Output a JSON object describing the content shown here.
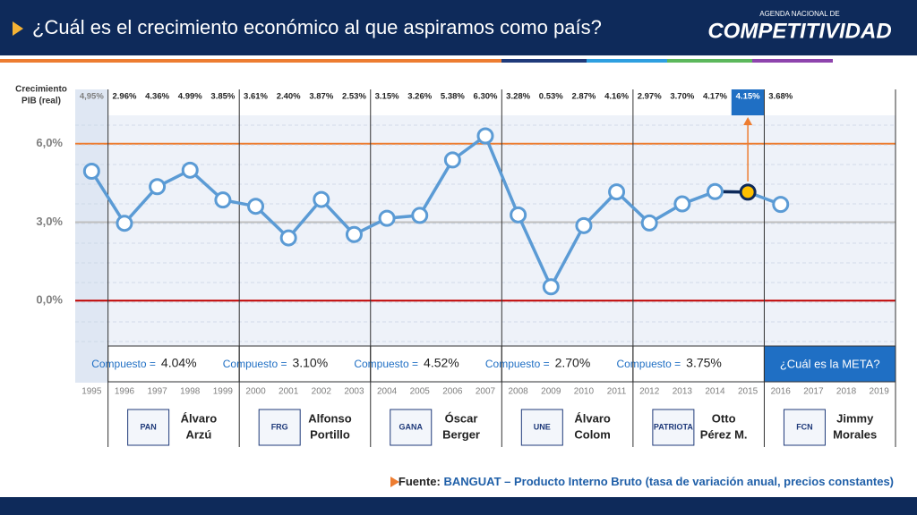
{
  "header": {
    "title": "¿Cuál es el crecimiento económico al que aspiramos como país?",
    "logo_top": "AGENDA NACIONAL DE",
    "logo": "COMPETITIVIDAD"
  },
  "chart_data": {
    "type": "line",
    "y_label": [
      "Crecimiento",
      "PIB (real)"
    ],
    "categories": [
      "1995",
      "1996",
      "1997",
      "1998",
      "1999",
      "2000",
      "2001",
      "2002",
      "2003",
      "2004",
      "2005",
      "2006",
      "2007",
      "2008",
      "2009",
      "2010",
      "2011",
      "2012",
      "2013",
      "2014",
      "2015",
      "2016",
      "2017",
      "2018",
      "2019"
    ],
    "series": [
      {
        "name": "Crecimiento PIB (real)",
        "color": "#5b9bd5",
        "values": [
          4.95,
          2.96,
          4.36,
          4.99,
          3.85,
          3.61,
          2.4,
          3.87,
          2.53,
          3.15,
          3.26,
          5.38,
          6.3,
          3.28,
          0.53,
          2.87,
          4.16,
          2.97,
          3.7,
          4.17,
          4.15,
          3.68,
          null,
          null,
          null
        ],
        "value_labels": [
          "4,95%",
          "2.96%",
          "4.36%",
          "4.99%",
          "3.85%",
          "3.61%",
          "2.40%",
          "3.87%",
          "2.53%",
          "3.15%",
          "3.26%",
          "5.38%",
          "6.30%",
          "3.28%",
          "0.53%",
          "2.87%",
          "4.16%",
          "2.97%",
          "3.70%",
          "4.17%",
          "4.15%",
          "3.68%",
          null,
          null,
          null
        ]
      }
    ],
    "ylim": [
      -3,
      8
    ],
    "yticks": [
      {
        "value": 0,
        "label": "0,0%"
      },
      {
        "value": 3,
        "label": "3,0%"
      },
      {
        "value": 6,
        "label": "6,0%"
      }
    ],
    "grid_colors": [
      "#c00000",
      "#bfbfbf",
      "#ed7d31"
    ],
    "highlight": {
      "category": "2015",
      "color": "#ffc000"
    },
    "periods": [
      {
        "label": "Compuesto =",
        "compuesto": "4.04%",
        "president": [
          "Álvaro",
          "Arzú"
        ],
        "party": "PAN"
      },
      {
        "label": "Compuesto =",
        "compuesto": "3.10%",
        "president": [
          "Alfonso",
          "Portillo"
        ],
        "party": "FRG"
      },
      {
        "label": "Compuesto =",
        "compuesto": "4.52%",
        "president": [
          "Óscar",
          "Berger"
        ],
        "party": "GANA"
      },
      {
        "label": "Compuesto =",
        "compuesto": "2.70%",
        "president": [
          "Álvaro",
          "Colom"
        ],
        "party": "UNE"
      },
      {
        "label": "Compuesto =",
        "compuesto": "3.75%",
        "president": [
          "Otto",
          "Pérez M."
        ],
        "party": "PATRIOTA"
      },
      {
        "label": "¿Cuál es la META?",
        "president": [
          "Jimmy",
          "Morales"
        ],
        "party": "FCN"
      }
    ]
  },
  "footer": {
    "label": "Fuente:",
    "text": "BANGUAT – Producto Interno Bruto (tasa de variación anual, precios constantes)"
  }
}
